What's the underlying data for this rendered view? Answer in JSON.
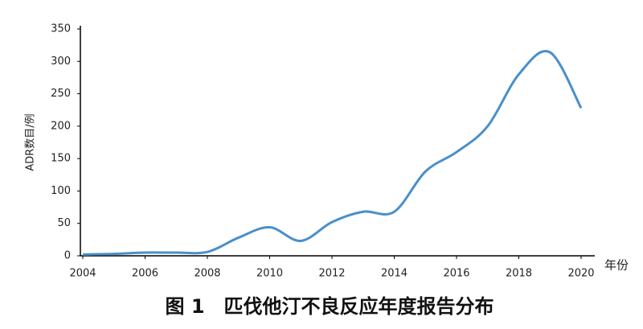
{
  "chart_data": {
    "type": "line",
    "title": "图 1　匹伐他汀不良反应年度报告分布",
    "y_label": "ADR数目/例",
    "x_label": "年份",
    "x": [
      2004,
      2005,
      2006,
      2007,
      2008,
      2009,
      2010,
      2011,
      2012,
      2013,
      2014,
      2015,
      2016,
      2017,
      2018,
      2019,
      2020
    ],
    "series": [
      {
        "name": "ADR",
        "color": "#4a8fcb",
        "values": [
          2,
          3,
          5,
          5,
          6,
          28,
          44,
          23,
          52,
          68,
          68,
          130,
          160,
          200,
          280,
          314,
          228
        ]
      }
    ],
    "xlim": [
      2004,
      2020
    ],
    "xticks": [
      2004,
      2006,
      2008,
      2010,
      2012,
      2014,
      2016,
      2018,
      2020
    ],
    "ylim": [
      0,
      350
    ],
    "yticks": [
      0,
      50,
      100,
      150,
      200,
      250,
      300,
      350
    ]
  }
}
